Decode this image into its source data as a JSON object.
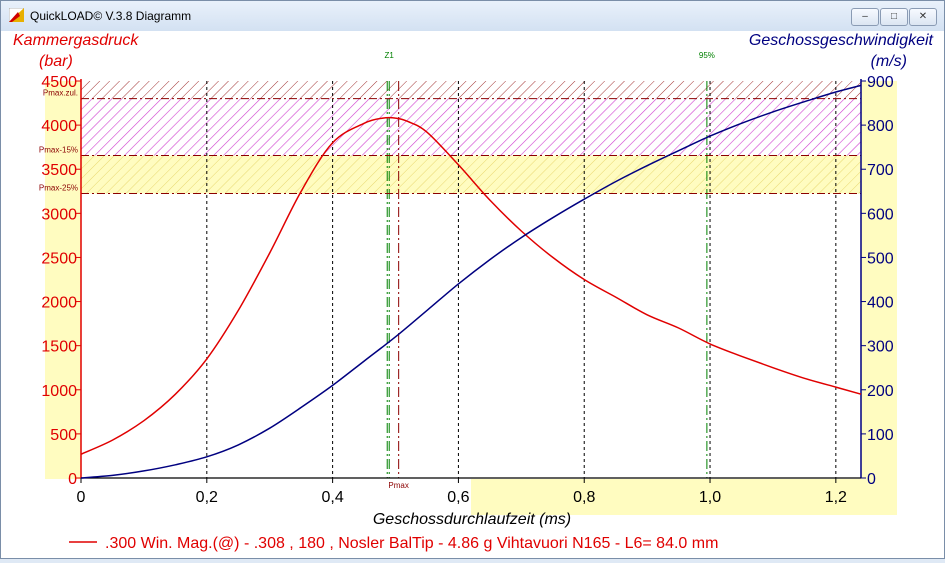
{
  "window": {
    "title": "QuickLOAD© V.3.8 Diagramm",
    "buttons": {
      "minimize": "–",
      "maximize": "□",
      "close": "✕"
    }
  },
  "colors": {
    "pressure": "#e00000",
    "velocity": "#000080",
    "marker": "#008000",
    "zone_yellow": "#fffcc0",
    "hatch_magenta": "#c000c0",
    "hatch_brown": "#8b0000"
  },
  "chart_data": {
    "type": "line",
    "xlabel": "Geschossdurchlaufzeit (ms)",
    "ylabel_left": [
      "Kammergasdruck",
      "(bar)"
    ],
    "ylabel_right": [
      "Geschossgeschwindigkeit",
      "(m/s)"
    ],
    "xlim": [
      0,
      1.24
    ],
    "ylim_left": [
      0,
      4500
    ],
    "ylim_right": [
      0,
      900
    ],
    "xticks": [
      0,
      0.2,
      0.4,
      0.6,
      0.8,
      1.0,
      1.2
    ],
    "xtick_labels": [
      "0",
      "0,2",
      "0,4",
      "0,6",
      "0,8",
      "1,0",
      "1,2"
    ],
    "yticks_left": [
      0,
      500,
      1000,
      1500,
      2000,
      2500,
      3000,
      3500,
      4000,
      4500
    ],
    "yticks_right": [
      0,
      100,
      200,
      300,
      400,
      500,
      600,
      700,
      800,
      900
    ],
    "grid": true,
    "thresholds": [
      {
        "label": "Pmax.zul.",
        "value": 4300
      },
      {
        "label": "Pmax-15%",
        "value": 3655
      },
      {
        "label": "Pmax-25%",
        "value": 3225
      }
    ],
    "markers": [
      {
        "label": "Z1",
        "x": 0.49
      },
      {
        "label": "Pmax",
        "x": 0.505
      },
      {
        "label": "95%",
        "x": 0.995
      }
    ],
    "series": [
      {
        "axis": "left",
        "x": [
          0,
          0.05,
          0.1,
          0.15,
          0.2,
          0.25,
          0.3,
          0.35,
          0.4,
          0.45,
          0.48,
          0.5,
          0.52,
          0.55,
          0.6,
          0.65,
          0.7,
          0.75,
          0.8,
          0.85,
          0.9,
          0.95,
          1.0,
          1.05,
          1.1,
          1.15,
          1.2,
          1.24
        ],
        "values": [
          270,
          430,
          650,
          950,
          1350,
          1900,
          2550,
          3250,
          3800,
          4020,
          4080,
          4080,
          4040,
          3920,
          3550,
          3150,
          2800,
          2500,
          2250,
          2050,
          1850,
          1700,
          1520,
          1380,
          1250,
          1130,
          1030,
          950
        ]
      },
      {
        "axis": "right",
        "x": [
          0,
          0.05,
          0.1,
          0.15,
          0.2,
          0.25,
          0.3,
          0.35,
          0.4,
          0.45,
          0.5,
          0.55,
          0.6,
          0.65,
          0.7,
          0.75,
          0.8,
          0.85,
          0.9,
          0.95,
          1.0,
          1.05,
          1.1,
          1.15,
          1.2,
          1.24
        ],
        "values": [
          0,
          6,
          16,
          30,
          48,
          75,
          113,
          160,
          210,
          265,
          320,
          380,
          440,
          495,
          545,
          590,
          632,
          672,
          708,
          742,
          775,
          804,
          830,
          853,
          875,
          890
        ]
      }
    ],
    "legend": {
      "position": "bottom",
      "text": ".300 Win. Mag.(@) - .308 , 180 , Nosler BalTip - 4.86 g Vihtavuori N165 - L6= 84.0 mm"
    }
  }
}
